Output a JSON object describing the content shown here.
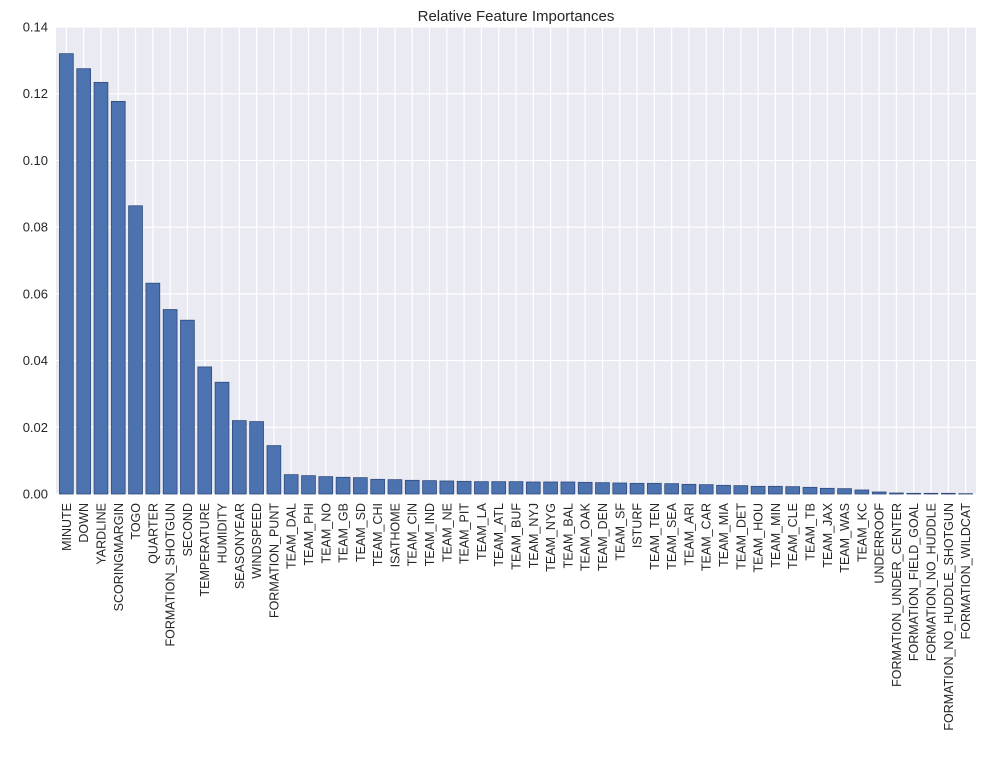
{
  "chart_data": {
    "type": "bar",
    "title": "Relative Feature Importances",
    "xlabel": "",
    "ylabel": "",
    "ylim": [
      0,
      0.14
    ],
    "yticks": [
      0.0,
      0.02,
      0.04,
      0.06,
      0.08,
      0.1,
      0.12,
      0.14
    ],
    "ytick_labels": [
      "0.00",
      "0.02",
      "0.04",
      "0.06",
      "0.08",
      "0.10",
      "0.12",
      "0.14"
    ],
    "grid": true,
    "bar_color": "#4c72b0",
    "background_color": "#eaeaf2",
    "categories": [
      "MINUTE",
      "DOWN",
      "YARDLINE",
      "SCORINGMARGIN",
      "TOGO",
      "QUARTER",
      "FORMATION_SHOTGUN",
      "SECOND",
      "TEMPERATURE",
      "HUMIDITY",
      "SEASONYEAR",
      "WINDSPEED",
      "FORMATION_PUNT",
      "TEAM_DAL",
      "TEAM_PHI",
      "TEAM_NO",
      "TEAM_GB",
      "TEAM_SD",
      "TEAM_CHI",
      "ISATHOME",
      "TEAM_CIN",
      "TEAM_IND",
      "TEAM_NE",
      "TEAM_PIT",
      "TEAM_LA",
      "TEAM_ATL",
      "TEAM_BUF",
      "TEAM_NYJ",
      "TEAM_NYG",
      "TEAM_BAL",
      "TEAM_OAK",
      "TEAM_DEN",
      "TEAM_SF",
      "ISTURF",
      "TEAM_TEN",
      "TEAM_SEA",
      "TEAM_ARI",
      "TEAM_CAR",
      "TEAM_MIA",
      "TEAM_DET",
      "TEAM_HOU",
      "TEAM_MIN",
      "TEAM_CLE",
      "TEAM_TB",
      "TEAM_JAX",
      "TEAM_WAS",
      "TEAM_KC",
      "UNDERROOF",
      "FORMATION_UNDER_CENTER",
      "FORMATION_FIELD_GOAL",
      "FORMATION_NO_HUDDLE",
      "FORMATION_NO_HUDDLE_SHOTGUN",
      "FORMATION_WILDCAT"
    ],
    "values": [
      0.132,
      0.1275,
      0.1234,
      0.1177,
      0.0864,
      0.0632,
      0.0553,
      0.0521,
      0.0381,
      0.0335,
      0.022,
      0.0217,
      0.0145,
      0.0058,
      0.0055,
      0.0052,
      0.005,
      0.0049,
      0.0044,
      0.0043,
      0.0041,
      0.004,
      0.0039,
      0.0038,
      0.0037,
      0.0037,
      0.0037,
      0.0036,
      0.0036,
      0.0036,
      0.0035,
      0.0034,
      0.0033,
      0.0032,
      0.0032,
      0.0031,
      0.0029,
      0.0028,
      0.0026,
      0.0025,
      0.0023,
      0.0023,
      0.0022,
      0.002,
      0.0017,
      0.0016,
      0.0012,
      0.0006,
      0.0003,
      0.0002,
      0.0002,
      0.0002,
      0.0001
    ]
  }
}
